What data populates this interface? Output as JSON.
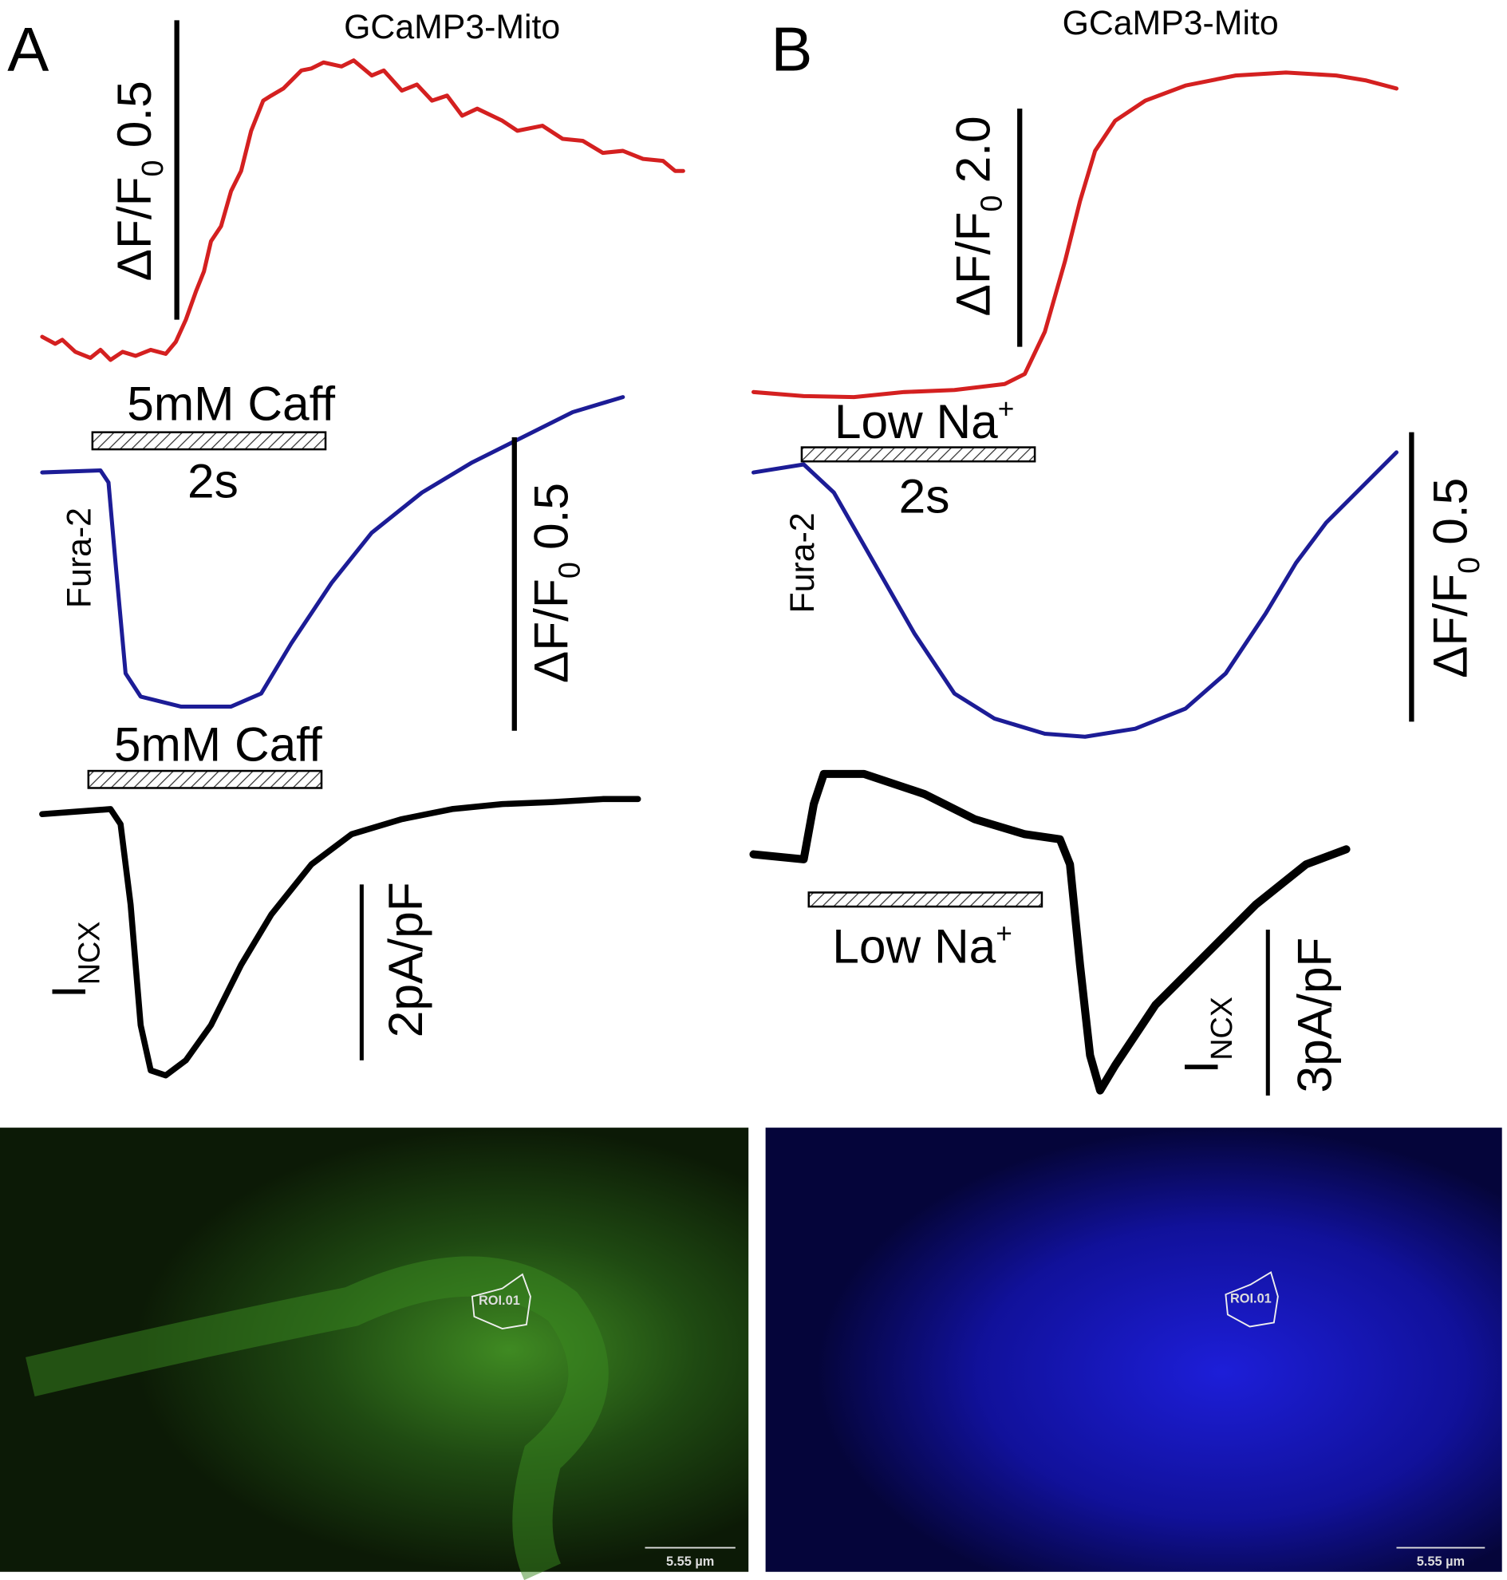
{
  "panel_a": {
    "label": "A",
    "mito": {
      "title": "GCaMP3-Mito",
      "scale_label": "ΔF/F",
      "scale_sub": "0",
      "scale_value": "0.5"
    },
    "stimulus_1": "5mM Caff",
    "time_scale": "2s",
    "fura": {
      "label": "Fura-2",
      "scale_label": "ΔF/F",
      "scale_sub": "0",
      "scale_value": "0.5"
    },
    "stimulus_2": "5mM Caff",
    "current": {
      "label": "I",
      "label_sub": "NCX",
      "scale": "2pA/pF"
    },
    "image": {
      "roi": "ROI.01",
      "scale_bar": "5.55 µm"
    }
  },
  "panel_b": {
    "label": "B",
    "mito": {
      "title": "GCaMP3-Mito",
      "scale_label": "ΔF/F",
      "scale_sub": "0",
      "scale_value": "2.0"
    },
    "stimulus_1": {
      "text": "Low Na",
      "sup": "+"
    },
    "time_scale": "2s",
    "fura": {
      "label": "Fura-2",
      "scale_label": "ΔF/F",
      "scale_sub": "0",
      "scale_value": "0.5"
    },
    "stimulus_2": {
      "text": "Low Na",
      "sup": "+"
    },
    "current": {
      "label": "I",
      "label_sub": "NCX",
      "scale": "3pA/pF"
    },
    "image": {
      "roi": "ROI.01",
      "scale_bar": "5.55 µm"
    }
  }
}
